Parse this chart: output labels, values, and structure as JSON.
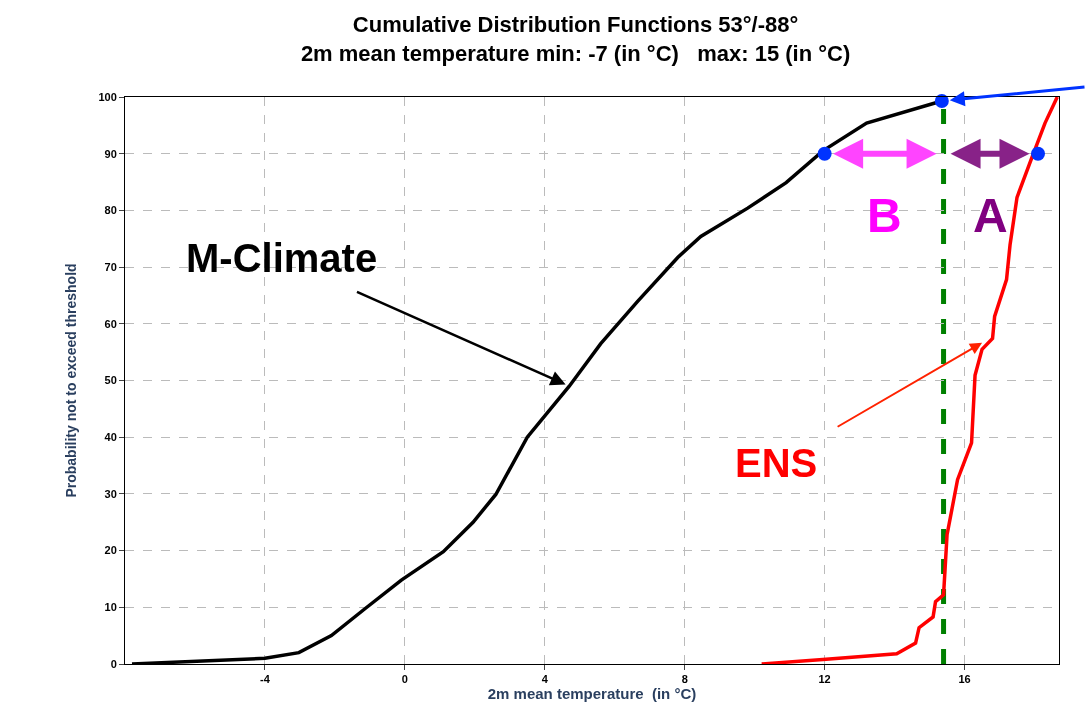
{
  "chart_data": {
    "type": "line",
    "title": "Cumulative Distribution Functions 53°/-88°",
    "subtitle": "2m mean temperature min: -7 (in °C)   max: 15 (in °C)",
    "xlabel": "2m mean temperature  (in °C)",
    "ylabel": "Probability not to exceed threshold",
    "xlim": [
      -8,
      18.7
    ],
    "xticks": [
      -4,
      0,
      4,
      8,
      12,
      16
    ],
    "ylim": [
      0,
      100
    ],
    "yticks": [
      0,
      10,
      20,
      30,
      40,
      50,
      60,
      70,
      80,
      90,
      100
    ],
    "grid": true,
    "series": [
      {
        "color": "#000000",
        "x": [
          -7.8,
          -4,
          -3.03,
          -2.1,
          -1.15,
          -0.1,
          1.1,
          1.95,
          2.6,
          3.5,
          4.7,
          5.6,
          6.66,
          7.8,
          8.46,
          9.8,
          10.9,
          11.95,
          13.2,
          15.35
        ],
        "values": [
          0,
          1,
          2,
          5,
          9.7,
          14.8,
          19.8,
          25,
          29.9,
          40,
          49,
          56.5,
          64,
          71.7,
          75.4,
          80.4,
          84.9,
          90.5,
          95.4,
          99.3
        ]
      },
      {
        "color": "#ff0000",
        "x": [
          10.2,
          11.95,
          14.06,
          14.6,
          14.7,
          15.1,
          15.17,
          15.4,
          15.5,
          15.8,
          16.2,
          16.3,
          16.5,
          16.8,
          16.86,
          17.2,
          17.3,
          17.5,
          17.9,
          18.3,
          18.65
        ],
        "values": [
          0,
          0.8,
          1.8,
          3.7,
          6.4,
          8.3,
          11,
          12.2,
          22.8,
          32.5,
          39,
          50.9,
          55.5,
          57.4,
          61.3,
          67.8,
          73.9,
          82.3,
          88.9,
          95.4,
          100
        ]
      },
      {
        "type": "scatter",
        "marker": "circle",
        "color": "#0033ff",
        "x": [
          15.35,
          12,
          18.1
        ],
        "values": [
          99.3,
          90,
          90
        ]
      }
    ],
    "ref_lines": [
      {
        "axis": "x",
        "value": 15.4,
        "color": "#008000",
        "line_style": "dashed"
      }
    ],
    "annotations": [
      {
        "text": "M-Climate",
        "x": 4.7,
        "y": 49
      },
      {
        "text": "ENS",
        "x": 16.6,
        "y": 57
      },
      {
        "text": "B",
        "x": 12,
        "y": 90
      },
      {
        "text": "A",
        "x": 18.1,
        "y": 90
      }
    ]
  }
}
